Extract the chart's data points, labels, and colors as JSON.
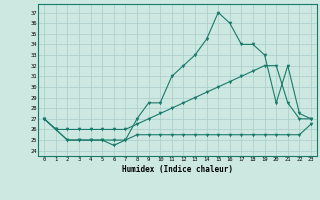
{
  "xlabel": "Humidex (Indice chaleur)",
  "background_color": "#cce8e0",
  "grid_color": "#aacccc",
  "line_color": "#1a7a6a",
  "x": [
    0,
    1,
    2,
    3,
    4,
    5,
    6,
    7,
    8,
    9,
    10,
    11,
    12,
    13,
    14,
    15,
    16,
    17,
    18,
    19,
    20,
    21,
    22,
    23
  ],
  "line1": [
    27,
    26,
    25,
    25,
    25,
    25,
    24.5,
    25,
    27,
    28.5,
    28.5,
    31,
    32,
    33,
    34.5,
    37,
    36,
    34,
    34,
    33,
    28.5,
    32,
    27.5,
    27
  ],
  "line2": [
    27,
    26,
    26,
    26,
    26,
    26,
    26,
    26,
    26.5,
    27,
    27.5,
    28,
    28.5,
    29,
    29.5,
    30,
    30.5,
    31,
    31.5,
    32,
    32,
    28.5,
    27,
    27
  ],
  "line3": [
    27,
    26,
    25,
    25,
    25,
    25,
    25,
    25,
    25.5,
    25.5,
    25.5,
    25.5,
    25.5,
    25.5,
    25.5,
    25.5,
    25.5,
    25.5,
    25.5,
    25.5,
    25.5,
    25.5,
    25.5,
    26.5
  ],
  "xlim": [
    -0.5,
    23.5
  ],
  "ylim": [
    23.5,
    37.8
  ],
  "yticks": [
    24,
    25,
    26,
    27,
    28,
    29,
    30,
    31,
    32,
    33,
    34,
    35,
    36,
    37
  ],
  "xticks": [
    0,
    1,
    2,
    3,
    4,
    5,
    6,
    7,
    8,
    9,
    10,
    11,
    12,
    13,
    14,
    15,
    16,
    17,
    18,
    19,
    20,
    21,
    22,
    23
  ]
}
